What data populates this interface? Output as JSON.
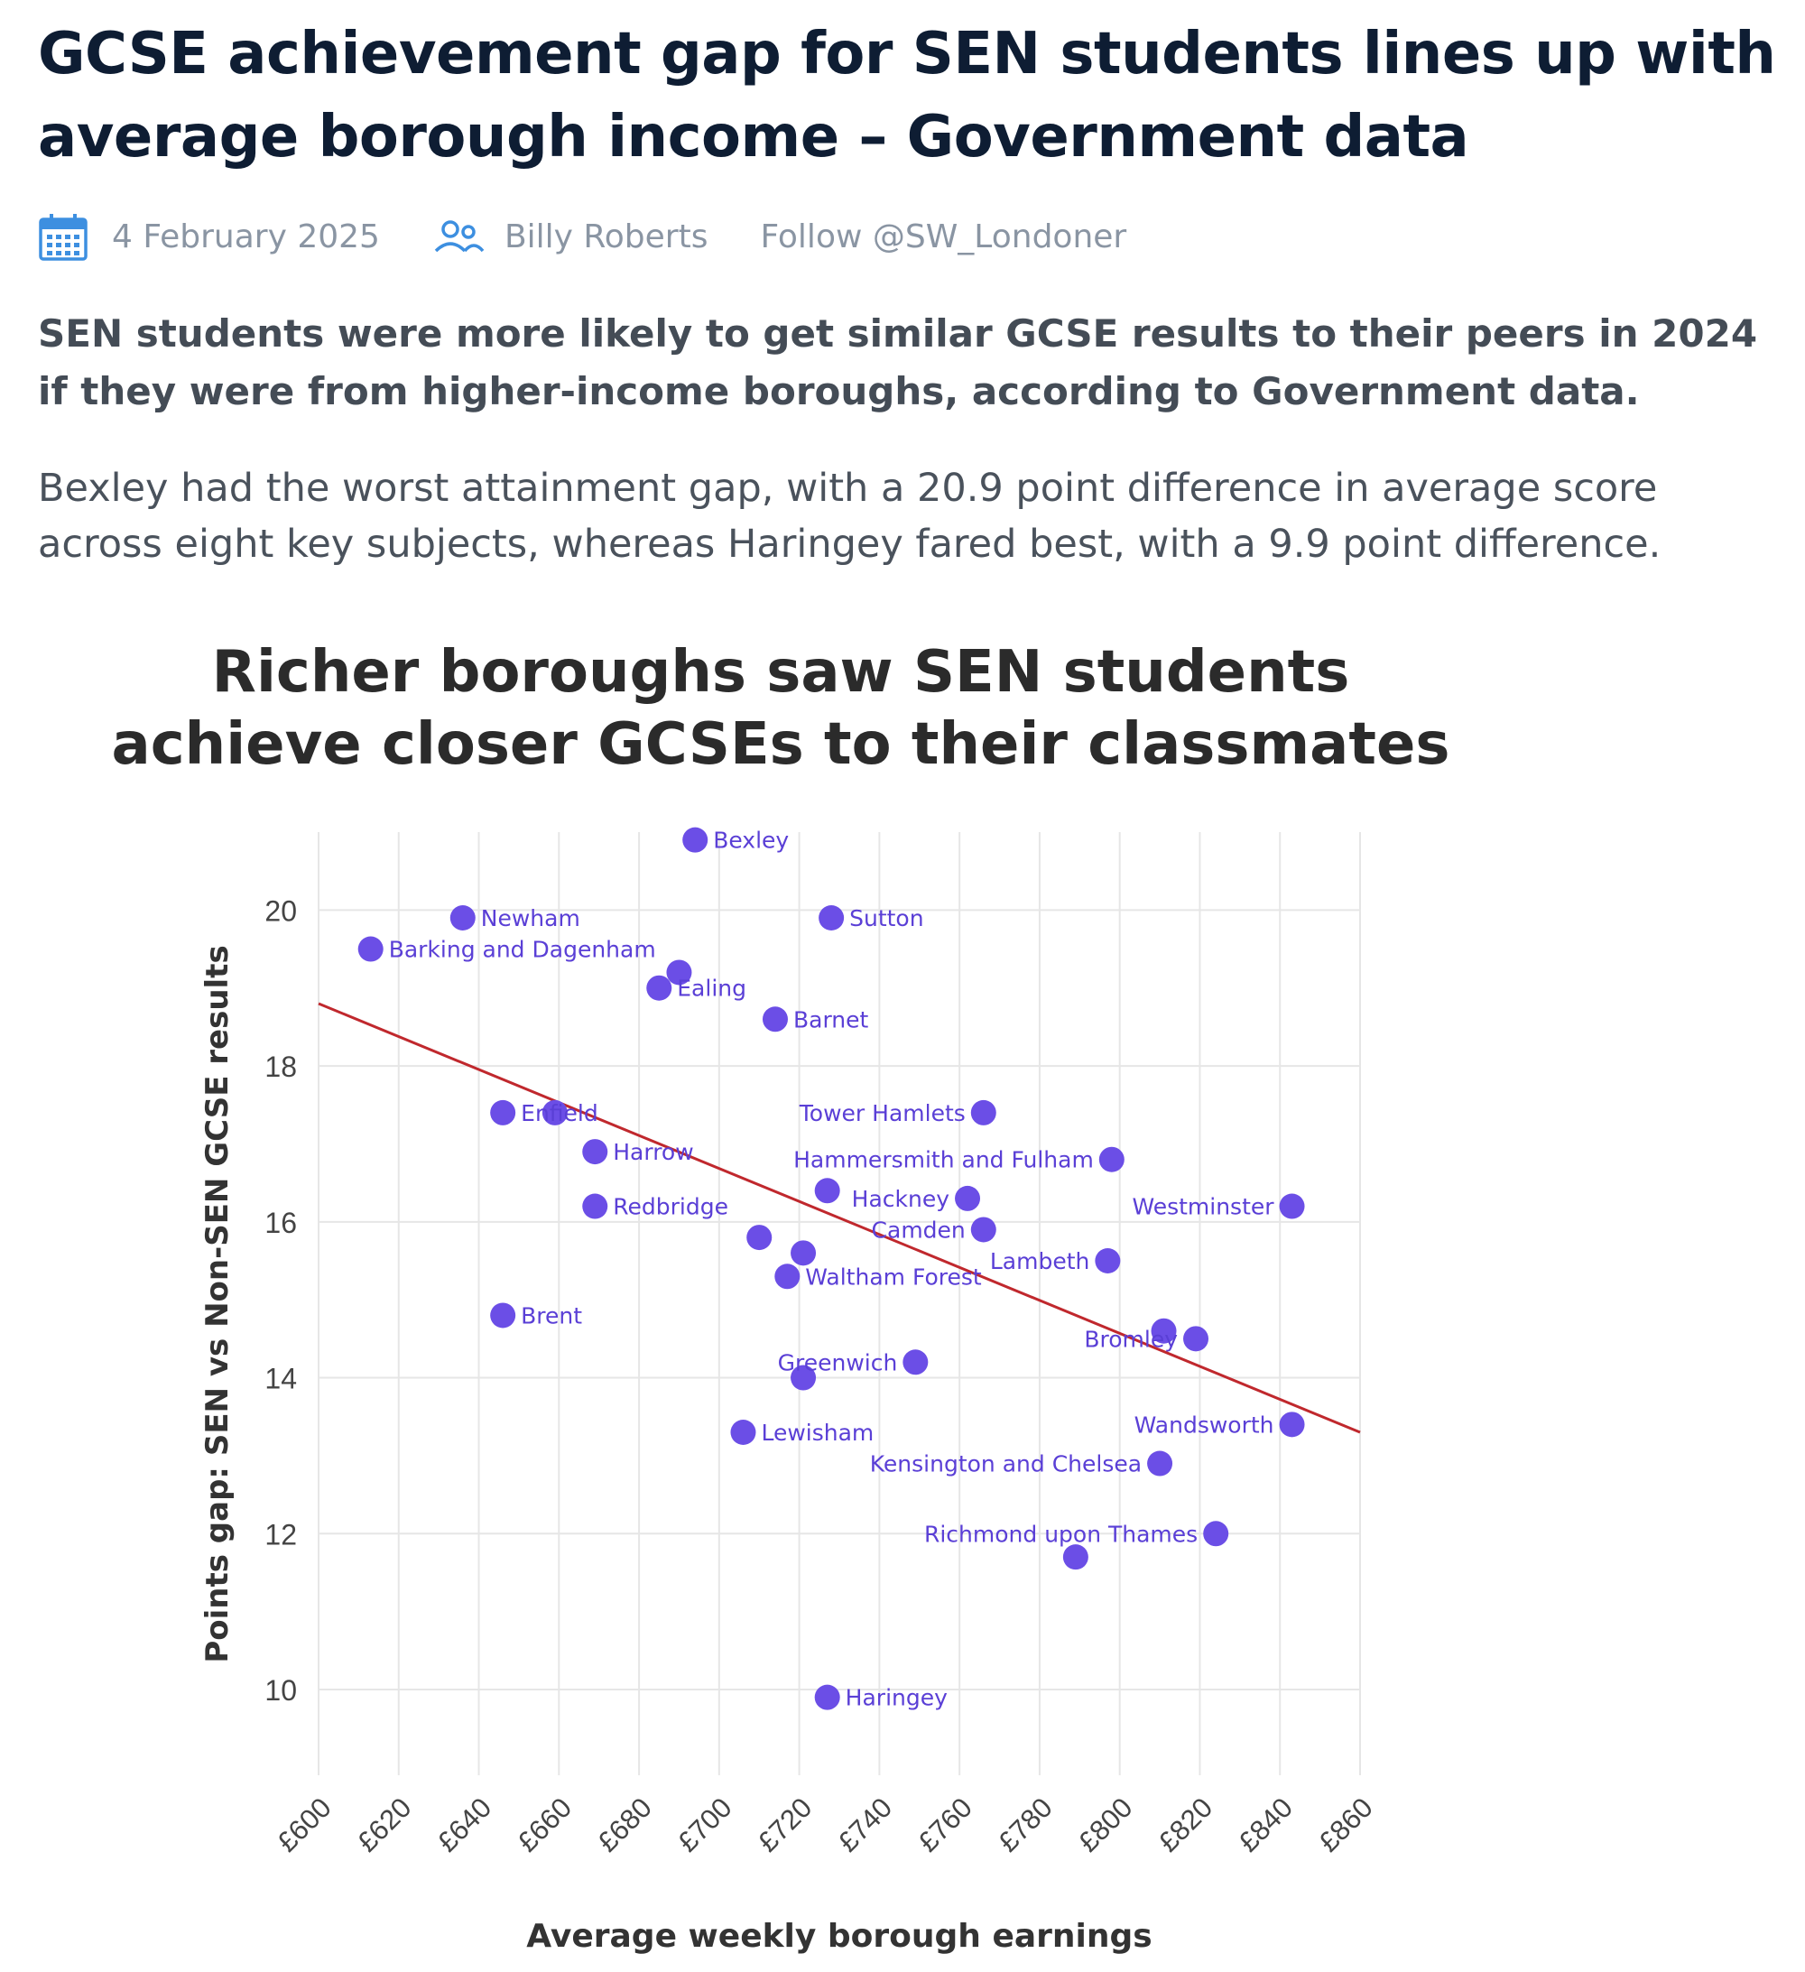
{
  "article": {
    "headline": "GCSE achievement gap for SEN students lines up with average borough income – Government data",
    "date": "4 February 2025",
    "author": "Billy Roberts",
    "follow": "Follow @SW_Londoner",
    "standfirst": "SEN students were more likely to get similar GCSE results to their peers in 2024 if they were from higher-income boroughs, according to Government data.",
    "body": "Bexley had the worst attainment gap, with a 20.9 point difference in average score across eight key subjects, whereas Haringey fared best, with a 9.9 point difference.",
    "icons": {
      "date": "calendar-icon",
      "author": "people-icon"
    }
  },
  "colors": {
    "point": "#6b4ee6",
    "label": "#5a3fd6",
    "trend": "#c0282d",
    "grid": "#e6e6e6"
  },
  "chart_data": {
    "type": "scatter",
    "title": "Richer boroughs saw SEN students achieve closer GCSEs to their classmates",
    "xlabel": "Average weekly borough earnings",
    "ylabel": "Points gap: SEN vs Non-SEN GCSE results",
    "xlim": [
      600,
      860
    ],
    "ylim": [
      8.9,
      21
    ],
    "x_ticks": [
      600,
      620,
      640,
      660,
      680,
      700,
      720,
      740,
      760,
      780,
      800,
      820,
      840,
      860
    ],
    "x_tick_labels": [
      "£600",
      "£620",
      "£640",
      "£660",
      "£680",
      "£700",
      "£720",
      "£740",
      "£760",
      "£780",
      "£800",
      "£820",
      "£840",
      "£860"
    ],
    "y_ticks": [
      10,
      12,
      14,
      16,
      18,
      20
    ],
    "grid": true,
    "trend_line": {
      "x": [
        600,
        860
      ],
      "y": [
        18.8,
        13.3
      ]
    },
    "points": [
      {
        "label": "Bexley",
        "x": 694,
        "y": 20.9
      },
      {
        "label": "Newham",
        "x": 636,
        "y": 19.9
      },
      {
        "label": "Sutton",
        "x": 728,
        "y": 19.9
      },
      {
        "label": "Barking and Dagenham",
        "x": 613,
        "y": 19.5
      },
      {
        "label": "",
        "x": 690,
        "y": 19.2
      },
      {
        "label": "Ealing",
        "x": 685,
        "y": 19.0
      },
      {
        "label": "Barnet",
        "x": 714,
        "y": 18.6
      },
      {
        "label": "Enfield",
        "x": 646,
        "y": 17.4
      },
      {
        "label": "",
        "x": 659,
        "y": 17.4
      },
      {
        "label": "Tower Hamlets",
        "x": 766,
        "y": 17.4
      },
      {
        "label": "Harrow",
        "x": 669,
        "y": 16.9
      },
      {
        "label": "Hammersmith and Fulham",
        "x": 798,
        "y": 16.8
      },
      {
        "label": "",
        "x": 727,
        "y": 16.4
      },
      {
        "label": "Hackney",
        "x": 762,
        "y": 16.3
      },
      {
        "label": "Redbridge",
        "x": 669,
        "y": 16.2
      },
      {
        "label": "Westminster",
        "x": 843,
        "y": 16.2
      },
      {
        "label": "Camden",
        "x": 766,
        "y": 15.9
      },
      {
        "label": "",
        "x": 710,
        "y": 15.8
      },
      {
        "label": "",
        "x": 721,
        "y": 15.6
      },
      {
        "label": "Lambeth",
        "x": 797,
        "y": 15.5
      },
      {
        "label": "Waltham Forest",
        "x": 717,
        "y": 15.3
      },
      {
        "label": "Brent",
        "x": 646,
        "y": 14.8
      },
      {
        "label": "",
        "x": 811,
        "y": 14.6
      },
      {
        "label": "Bromley",
        "x": 819,
        "y": 14.5
      },
      {
        "label": "Greenwich",
        "x": 749,
        "y": 14.2
      },
      {
        "label": "",
        "x": 721,
        "y": 14.0
      },
      {
        "label": "Wandsworth",
        "x": 843,
        "y": 13.4
      },
      {
        "label": "Lewisham",
        "x": 706,
        "y": 13.3
      },
      {
        "label": "Kensington and Chelsea",
        "x": 810,
        "y": 12.9
      },
      {
        "label": "Richmond upon Thames",
        "x": 824,
        "y": 12.0
      },
      {
        "label": "",
        "x": 789,
        "y": 11.7
      },
      {
        "label": "Haringey",
        "x": 727,
        "y": 9.9
      }
    ]
  }
}
